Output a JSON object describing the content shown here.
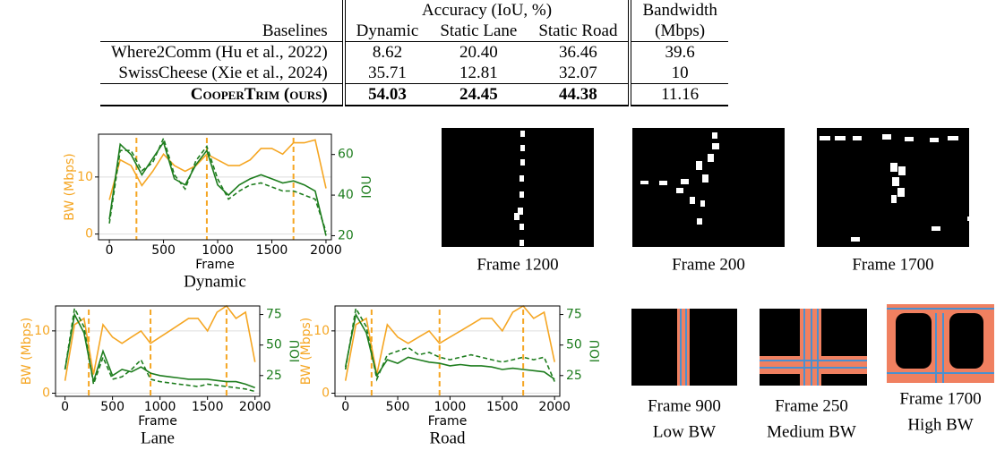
{
  "table": {
    "header_top": [
      "Accuracy (IoU, %)",
      "Bandwidth"
    ],
    "header": [
      "Baselines",
      "Dynamic",
      "Static Lane",
      "Static Road",
      "(Mbps)"
    ],
    "rows": [
      [
        "Where2Comm (Hu et al., 2022)",
        "8.62",
        "20.40",
        "36.46",
        "39.6"
      ],
      [
        "SwissCheese (Xie et al., 2024)",
        "35.71",
        "12.81",
        "32.07",
        "10"
      ],
      [
        "CooperTrim (ours)",
        "54.03",
        "24.45",
        "44.38",
        "11.16"
      ]
    ]
  },
  "chart_data": [
    {
      "type": "line",
      "title": "Dynamic",
      "xlabel": "Frame",
      "ylabel": "BW (Mbps)",
      "y2label": "IOU",
      "x": [
        0,
        100,
        200,
        300,
        400,
        500,
        600,
        700,
        800,
        900,
        1000,
        1100,
        1200,
        1300,
        1400,
        1500,
        1600,
        1700,
        1800,
        1900,
        2000
      ],
      "series": [
        {
          "color": "#f5a623",
          "values": [
            6,
            13,
            12,
            8.5,
            11,
            14,
            12,
            11,
            12,
            14,
            13,
            12,
            12,
            13,
            15,
            15,
            14,
            16,
            16,
            16.5,
            8
          ]
        },
        {
          "color": "#1e7d1e",
          "values": [
            28,
            65,
            60,
            50,
            58,
            66,
            48,
            45,
            55,
            62,
            45,
            40,
            45,
            48,
            50,
            48,
            46,
            47,
            45,
            42,
            20
          ],
          "axis": "y2"
        },
        {
          "color": "#1e7d1e",
          "dash": true,
          "values": [
            26,
            62,
            62,
            52,
            56,
            68,
            50,
            43,
            57,
            64,
            48,
            38,
            42,
            45,
            46,
            44,
            42,
            42,
            40,
            38,
            22
          ],
          "axis": "y2"
        }
      ],
      "vlines": [
        250,
        900,
        1700
      ],
      "vline_color": "#f5a623",
      "xlim": [
        -100,
        2050
      ],
      "xticks": [
        0,
        500,
        1000,
        1500,
        2000
      ],
      "ylim": [
        -1,
        17.5
      ],
      "yticks": [
        0,
        10
      ],
      "y2lim": [
        18,
        70
      ],
      "y2ticks": [
        20,
        40,
        60
      ]
    },
    {
      "type": "line",
      "title": "Lane",
      "xlabel": "Frame",
      "ylabel": "BW (Mbps)",
      "y2label": "IOU",
      "x": [
        0,
        100,
        200,
        300,
        400,
        500,
        600,
        700,
        800,
        900,
        1000,
        1100,
        1200,
        1300,
        1400,
        1500,
        1600,
        1700,
        1800,
        1900,
        2000
      ],
      "series": [
        {
          "color": "#f5a623",
          "values": [
            2,
            11,
            12,
            3,
            11,
            9,
            8,
            9,
            10,
            8,
            9,
            10,
            11,
            12,
            12,
            10,
            13,
            14,
            12,
            13,
            5
          ],
          "axis": "y"
        },
        {
          "color": "#1e7d1e",
          "values": [
            30,
            75,
            60,
            20,
            45,
            25,
            30,
            28,
            32,
            27,
            25,
            24,
            23,
            22,
            22,
            22,
            21,
            20,
            20,
            18,
            15
          ],
          "axis": "y2"
        },
        {
          "color": "#1e7d1e",
          "dash": true,
          "values": [
            30,
            80,
            65,
            18,
            40,
            22,
            24,
            30,
            38,
            22,
            20,
            19,
            18,
            17,
            16,
            18,
            17,
            16,
            15,
            14,
            12
          ],
          "axis": "y2"
        }
      ],
      "vlines": [
        250,
        900,
        1700
      ],
      "vline_color": "#f5a623",
      "xlim": [
        -100,
        2050
      ],
      "xticks": [
        0,
        500,
        1000,
        1500,
        2000
      ],
      "ylim": [
        -0.5,
        14
      ],
      "yticks": [
        0,
        10
      ],
      "y2lim": [
        8,
        82
      ],
      "y2ticks": [
        25,
        50,
        75
      ]
    },
    {
      "type": "line",
      "title": "Road",
      "xlabel": "Frame",
      "ylabel": "BW (Mbps)",
      "y2label": "IOU",
      "x": [
        0,
        100,
        200,
        300,
        400,
        500,
        600,
        700,
        800,
        900,
        1000,
        1100,
        1200,
        1300,
        1400,
        1500,
        1600,
        1700,
        1800,
        1900,
        2000
      ],
      "series": [
        {
          "color": "#f5a623",
          "values": [
            2,
            11,
            12,
            3,
            11,
            9,
            8,
            9,
            10,
            8,
            9,
            10,
            11,
            12,
            12,
            10,
            13,
            14,
            12,
            13,
            5
          ],
          "axis": "y"
        },
        {
          "color": "#1e7d1e",
          "values": [
            32,
            75,
            60,
            25,
            38,
            35,
            40,
            38,
            36,
            35,
            33,
            34,
            33,
            33,
            32,
            30,
            31,
            30,
            29,
            28,
            22
          ],
          "axis": "y2"
        },
        {
          "color": "#1e7d1e",
          "dash": true,
          "values": [
            30,
            80,
            65,
            22,
            42,
            45,
            48,
            42,
            44,
            40,
            38,
            40,
            42,
            40,
            38,
            36,
            38,
            40,
            38,
            40,
            20
          ],
          "axis": "y2"
        }
      ],
      "vlines": [
        250,
        900,
        1700
      ],
      "vline_color": "#f5a623",
      "xlim": [
        -100,
        2050
      ],
      "xticks": [
        0,
        500,
        1000,
        1500,
        2000
      ],
      "ylim": [
        -0.5,
        14
      ],
      "yticks": [
        0,
        10
      ],
      "y2lim": [
        8,
        82
      ],
      "y2ticks": [
        25,
        50,
        75
      ]
    }
  ],
  "frames": [
    {
      "caption": "Frame 1200"
    },
    {
      "caption": "Frame 200"
    },
    {
      "caption": "Frame 1700"
    }
  ],
  "bw_frames": [
    {
      "caption": "Frame 900",
      "level": "Low BW"
    },
    {
      "caption": "Frame 250",
      "level": "Medium BW"
    },
    {
      "caption": "Frame 1700",
      "level": "High BW"
    }
  ]
}
